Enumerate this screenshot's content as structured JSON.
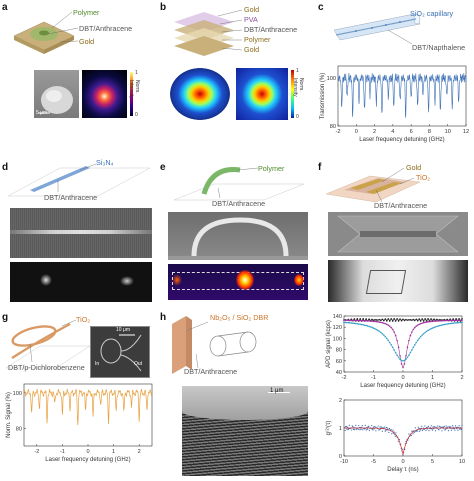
{
  "panels": {
    "a": {
      "letter": "a",
      "labels": {
        "polymer": "Polymer",
        "dbt": "DBT/Anthracene",
        "gold": "Gold"
      },
      "scale": "5 μm",
      "cbar": {
        "max": "1",
        "min": "0",
        "title": "Norm. Intensity"
      }
    },
    "b": {
      "letter": "b",
      "labels": {
        "gold_top": "Gold",
        "pva": "PVA",
        "dbt": "DBT/Anthracene",
        "polymer": "Polymer",
        "gold_bot": "Gold"
      },
      "cbar": {
        "max": "1",
        "min": "0",
        "title": "Norm. Intensity"
      }
    },
    "c": {
      "letter": "c",
      "labels": {
        "capillary": "SiO₂ capillary",
        "dbt": "DBT/Napthalene"
      }
    },
    "d": {
      "letter": "d",
      "labels": {
        "waveguide": "Si₃N₄",
        "dbt": "DBT/Anthracene"
      }
    },
    "e": {
      "letter": "e",
      "labels": {
        "polymer": "Polymer",
        "dbt": "DBT/Anthracene"
      }
    },
    "f": {
      "letter": "f",
      "labels": {
        "gold": "Gold",
        "tio2": "TiO₂",
        "dbt": "DBT/Anthracene"
      }
    },
    "g": {
      "letter": "g",
      "labels": {
        "tio2": "TiO₂",
        "dbt": "DBT/p-Dichlorobenzene",
        "scale": "10 μm",
        "in": "In",
        "out": "Out"
      }
    },
    "h": {
      "letter": "h",
      "labels": {
        "dbr": "Nb₂O₅ / SiO₂ DBR",
        "dbt": "DBT/Anthracene",
        "scale": "1 μm"
      }
    }
  },
  "chart_data": [
    {
      "id": "c-transmission",
      "type": "line",
      "xlabel": "Laser frequency detuning (GHz)",
      "ylabel": "Transmission (%)",
      "xlim": [
        -2,
        12
      ],
      "ylim": [
        80,
        105
      ],
      "xticks": [
        -2,
        0,
        2,
        4,
        6,
        8,
        10,
        12
      ],
      "yticks": [
        80,
        100
      ],
      "dips": [
        [
          -1.6,
          88
        ],
        [
          -1.0,
          92
        ],
        [
          -0.4,
          84
        ],
        [
          0.3,
          90
        ],
        [
          0.9,
          86
        ],
        [
          1.5,
          93
        ],
        [
          2.2,
          89
        ],
        [
          2.8,
          85
        ],
        [
          3.5,
          92
        ],
        [
          4.1,
          87
        ],
        [
          4.8,
          90
        ],
        [
          5.4,
          84
        ],
        [
          6.0,
          91
        ],
        [
          6.7,
          88
        ],
        [
          7.3,
          93
        ],
        [
          7.9,
          86
        ],
        [
          8.6,
          90
        ],
        [
          9.2,
          85
        ],
        [
          9.9,
          92
        ],
        [
          10.5,
          88
        ],
        [
          11.2,
          90
        ]
      ],
      "baseline": 100
    },
    {
      "id": "g-signal",
      "type": "line",
      "xlabel": "Laser frequency detuning (GHz)",
      "ylabel": "Norm. Signal (%)",
      "xlim": [
        -2.5,
        2.5
      ],
      "ylim": [
        70,
        105
      ],
      "xticks": [
        -2,
        -1,
        0,
        1,
        2
      ],
      "yticks": [
        80,
        100
      ],
      "dips": [
        [
          -2.2,
          88
        ],
        [
          -1.9,
          92
        ],
        [
          -1.6,
          84
        ],
        [
          -1.3,
          93
        ],
        [
          -1.0,
          87
        ],
        [
          -0.7,
          91
        ],
        [
          -0.4,
          82
        ],
        [
          -0.1,
          90
        ],
        [
          0.2,
          86
        ],
        [
          0.5,
          93
        ],
        [
          0.8,
          84
        ],
        [
          1.1,
          90
        ],
        [
          1.4,
          88
        ],
        [
          1.7,
          92
        ],
        [
          2.0,
          85
        ],
        [
          2.3,
          90
        ]
      ],
      "baseline": 100
    },
    {
      "id": "h-apd",
      "type": "line",
      "xlabel": "Laser frequency detuning (GHz)",
      "ylabel": "APD signal (kcps)",
      "xlim": [
        -2,
        2
      ],
      "ylim": [
        40,
        140
      ],
      "xticks": [
        -2,
        -1,
        0,
        1,
        2
      ],
      "yticks": [
        40,
        60,
        80,
        100,
        120,
        140
      ],
      "series": [
        {
          "color": "#222222",
          "level": 133,
          "depth": 0,
          "width": 1
        },
        {
          "color": "#a032a0",
          "level": 133,
          "depth": 85,
          "width": 0.35
        },
        {
          "color": "#3aa0c8",
          "level": 133,
          "depth": 73,
          "width": 1.0
        }
      ]
    },
    {
      "id": "h-g2",
      "type": "line",
      "xlabel": "Delay τ (ns)",
      "ylabel": "g⁽²⁾(τ)",
      "xlim": [
        -10,
        10
      ],
      "ylim": [
        0,
        2
      ],
      "xticks": [
        -10,
        -5,
        0,
        5,
        10
      ],
      "yticks": [
        0,
        1,
        2
      ],
      "baseline": 1.0,
      "dip_min": 0.05,
      "tau": 0.9
    }
  ]
}
